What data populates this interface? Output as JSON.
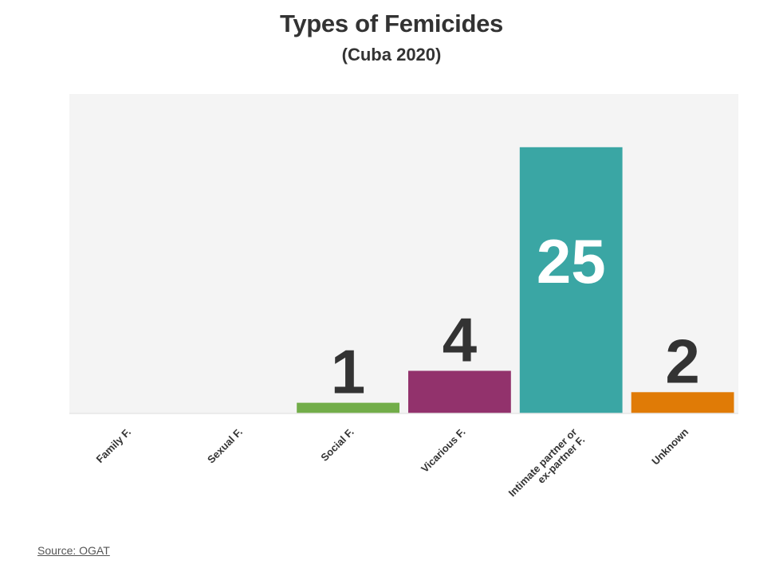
{
  "chart_data": {
    "type": "bar",
    "title": "Types of Femicides",
    "subtitle": "(Cuba 2020)",
    "categories": [
      [
        "Family F."
      ],
      [
        "Sexual F."
      ],
      [
        "Social F."
      ],
      [
        "Vicarious F."
      ],
      [
        "Intimate partner or",
        "ex-partner F."
      ],
      [
        "Unknown"
      ]
    ],
    "values": [
      0,
      0,
      1,
      4,
      25,
      2
    ],
    "data_labels": [
      "",
      "",
      "1",
      "4",
      "25",
      "2"
    ],
    "colors": [
      "#7f7f7f",
      "#7f7f7f",
      "#72ad49",
      "#92326c",
      "#3aa6a4",
      "#e07b06"
    ],
    "label_colors": [
      "#333333",
      "#333333",
      "#333333",
      "#333333",
      "#ffffff",
      "#333333"
    ],
    "ylim": [
      0,
      30
    ],
    "xlabel": "",
    "ylabel": "",
    "grid": false,
    "plot_background": "#f4f4f4"
  },
  "source": {
    "label": "Source: OGAT"
  }
}
